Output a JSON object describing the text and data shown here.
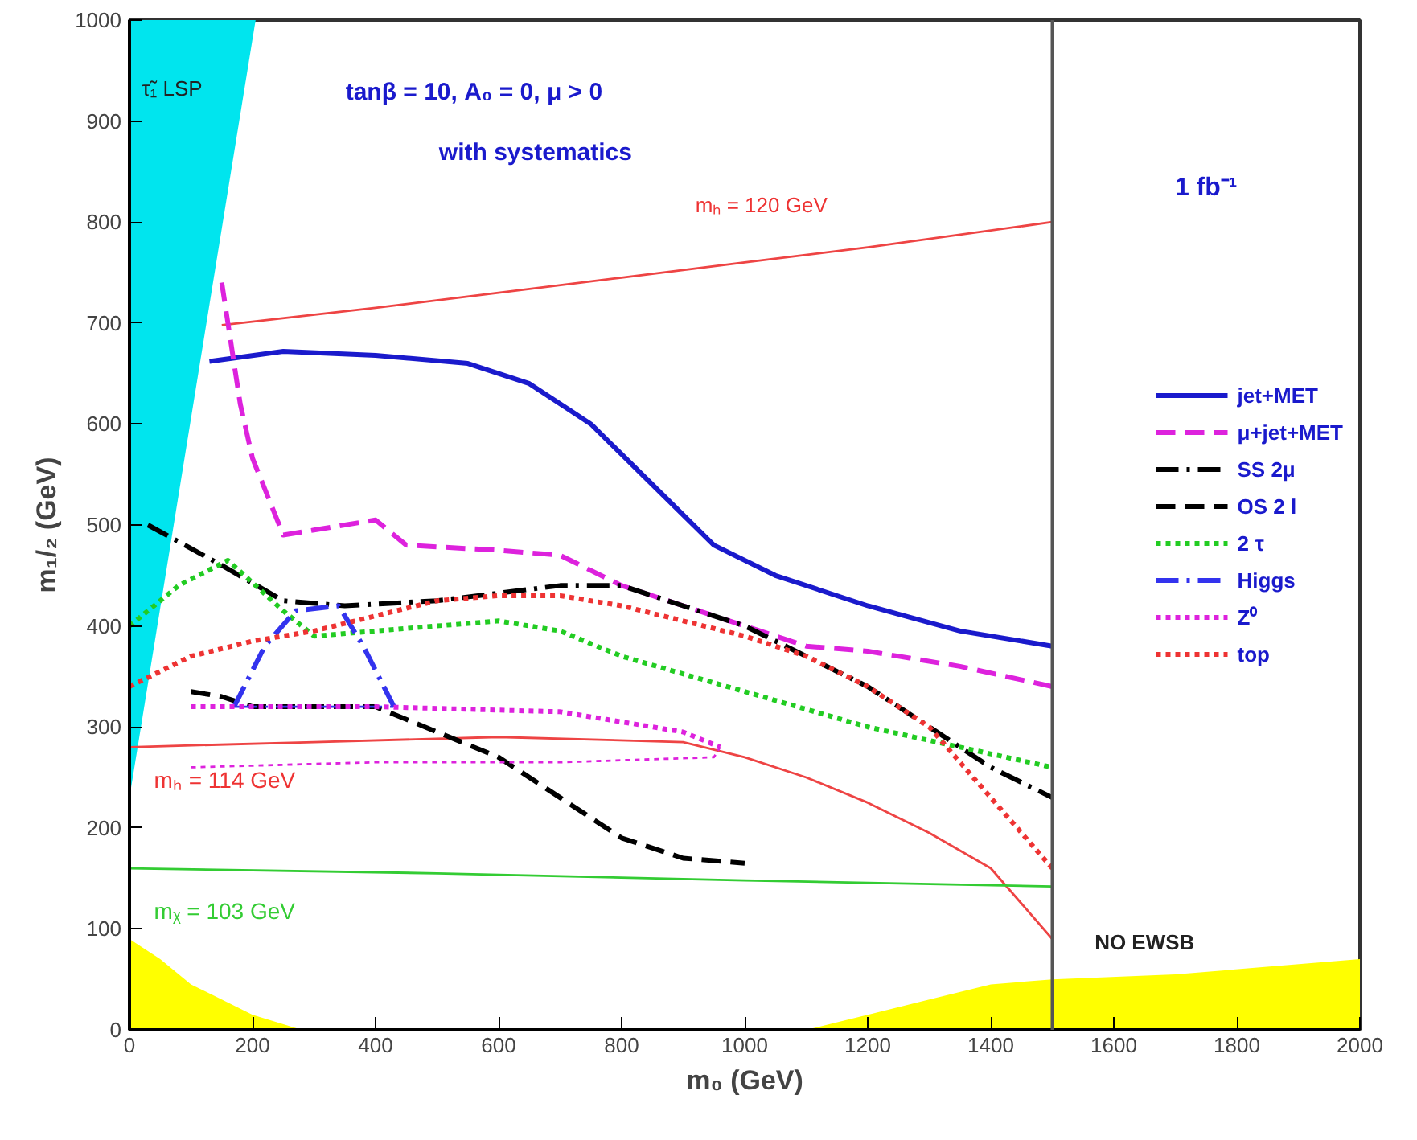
{
  "chart_data": {
    "type": "line",
    "xlabel": "m₀ (GeV)",
    "ylabel": "m₁/₂ (GeV)",
    "xlim": [
      0,
      2000
    ],
    "ylim": [
      0,
      1000
    ],
    "xticks": [
      0,
      200,
      400,
      600,
      800,
      1000,
      1200,
      1400,
      1600,
      1800,
      2000
    ],
    "yticks": [
      0,
      100,
      200,
      300,
      400,
      500,
      600,
      700,
      800,
      900,
      1000
    ],
    "grid": false,
    "legend": "right",
    "series": [
      {
        "type": "area",
        "color": "#00e5ee",
        "x": [
          0,
          205,
          0
        ],
        "values": [
          230,
          1000,
          1000
        ]
      },
      {
        "type": "area",
        "color": "#ffff00",
        "x": [
          0,
          50,
          100,
          150,
          200,
          280,
          1100,
          1200,
          1300,
          1400,
          1500,
          1700,
          2000
        ],
        "values": [
          90,
          70,
          45,
          30,
          15,
          0,
          0,
          15,
          30,
          45,
          50,
          55,
          70
        ]
      },
      {
        "color": "#ee4444",
        "line_style": "solid",
        "x": [
          150,
          400,
          600,
          800,
          1000,
          1200,
          1500
        ],
        "values": [
          698,
          715,
          730,
          745,
          760,
          775,
          800
        ]
      },
      {
        "color": "#ee4444",
        "line_style": "solid",
        "x": [
          0,
          300,
          600,
          900,
          1000,
          1100,
          1200,
          1300,
          1400,
          1450,
          1500
        ],
        "values": [
          280,
          285,
          290,
          285,
          270,
          250,
          225,
          195,
          160,
          125,
          90
        ]
      },
      {
        "color": "#33cc33",
        "line_style": "solid",
        "x": [
          0,
          500,
          1000,
          1500
        ],
        "values": [
          160,
          155,
          148,
          142
        ]
      },
      {
        "name": "jet+MET",
        "color": "#1a1acc",
        "line_style": "solid",
        "x": [
          130,
          250,
          400,
          550,
          650,
          750,
          850,
          950,
          1050,
          1200,
          1350,
          1500
        ],
        "values": [
          662,
          672,
          668,
          660,
          640,
          600,
          540,
          480,
          450,
          420,
          395,
          380
        ]
      },
      {
        "name": "μ+jet+MET",
        "color": "#dd22dd",
        "line_style": "dashed",
        "x": [
          150,
          180,
          200,
          250,
          300,
          400,
          450,
          600,
          700,
          800,
          900,
          1000,
          1100,
          1200,
          1350,
          1500
        ],
        "values": [
          740,
          620,
          566,
          490,
          495,
          505,
          480,
          475,
          470,
          440,
          420,
          400,
          380,
          375,
          360,
          340
        ]
      },
      {
        "name": "SS 2μ",
        "color": "#000000",
        "line_style": "dashdot",
        "x": [
          30,
          150,
          250,
          350,
          500,
          700,
          800,
          900,
          1000,
          1100,
          1200,
          1300,
          1400,
          1500
        ],
        "values": [
          500,
          460,
          425,
          420,
          425,
          440,
          440,
          420,
          400,
          370,
          340,
          300,
          260,
          230
        ]
      },
      {
        "name": "OS 2 l",
        "color": "#000000",
        "line_style": "dashed",
        "x": [
          100,
          150,
          200,
          400,
          600,
          700,
          800,
          900,
          1000
        ],
        "values": [
          335,
          330,
          320,
          320,
          270,
          230,
          190,
          170,
          165
        ]
      },
      {
        "name": "2 τ",
        "color": "#22cc22",
        "line_style": "dotted",
        "x": [
          0,
          80,
          160,
          250,
          300,
          400,
          600,
          700,
          800,
          1000,
          1200,
          1350,
          1500
        ],
        "values": [
          400,
          440,
          465,
          415,
          390,
          395,
          405,
          395,
          370,
          335,
          300,
          280,
          260
        ]
      },
      {
        "name": "Higgs",
        "color": "#3333ee",
        "line_style": "dashdot",
        "x": [
          170,
          220,
          270,
          340,
          380,
          430
        ],
        "values": [
          320,
          380,
          415,
          420,
          380,
          320
        ]
      },
      {
        "color": "#3333ee",
        "line_style": "dashdot",
        "x": [
          170,
          430
        ],
        "values": [
          320,
          320
        ]
      },
      {
        "name": "Z⁰",
        "color": "#dd22dd",
        "line_style": "dotted",
        "x": [
          100,
          400,
          700,
          900,
          960
        ],
        "values": [
          320,
          320,
          315,
          295,
          280
        ]
      },
      {
        "color": "#dd22dd",
        "line_style": "dotted",
        "x": [
          100,
          400,
          700,
          950,
          960
        ],
        "values": [
          260,
          265,
          265,
          270,
          280
        ]
      },
      {
        "name": "top",
        "color": "#ee3333",
        "line_style": "dotted",
        "x": [
          0,
          100,
          200,
          300,
          400,
          500,
          600,
          700,
          800,
          900,
          1000,
          1100,
          1200,
          1300,
          1400,
          1500
        ],
        "values": [
          340,
          370,
          385,
          395,
          410,
          425,
          430,
          430,
          420,
          405,
          390,
          370,
          340,
          300,
          230,
          160
        ]
      }
    ],
    "ref_lines": [
      {
        "axis": "x",
        "value": 1500,
        "color": "#555555",
        "line_style": "solid"
      }
    ],
    "annotations": [
      "tanβ = 10, A₀ = 0, μ > 0",
      "with systematics",
      "1 fb⁻¹",
      "τ̃₁ LSP",
      "mₕ = 120 GeV",
      "mₕ = 114 GeV",
      "mᵪ = 103 GeV",
      "NO EWSB"
    ]
  }
}
